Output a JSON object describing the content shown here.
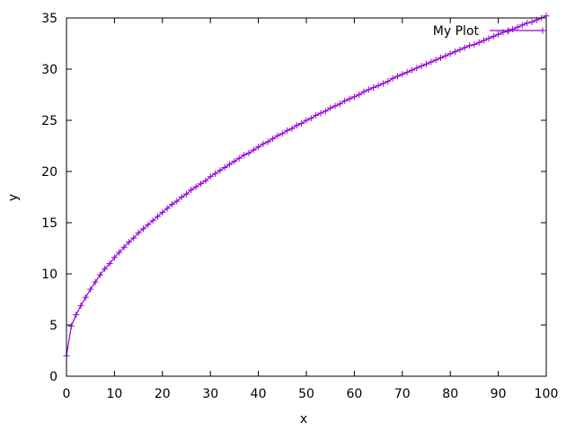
{
  "chart_data": {
    "type": "line",
    "title": "",
    "xlabel": "x",
    "ylabel": "y",
    "xlim": [
      0,
      100
    ],
    "ylim": [
      0,
      35
    ],
    "x_ticks": [
      "0",
      "10",
      "20",
      "30",
      "40",
      "50",
      "60",
      "70",
      "80",
      "90",
      "100"
    ],
    "y_ticks": [
      "0",
      "5",
      "10",
      "15",
      "20",
      "25",
      "30",
      "35"
    ],
    "legend_position": "top-right",
    "grid": false,
    "series": [
      {
        "name": "My Plot",
        "color": "#9400d3",
        "marker": "plus",
        "x": [
          0,
          1,
          2,
          3,
          4,
          5,
          6,
          7,
          8,
          9,
          10,
          11,
          12,
          13,
          14,
          15,
          16,
          17,
          18,
          19,
          20,
          21,
          22,
          23,
          24,
          25,
          26,
          27,
          28,
          29,
          30,
          31,
          32,
          33,
          34,
          35,
          36,
          37,
          38,
          39,
          40,
          41,
          42,
          43,
          44,
          45,
          46,
          47,
          48,
          49,
          50,
          51,
          52,
          53,
          54,
          55,
          56,
          57,
          58,
          59,
          60,
          61,
          62,
          63,
          64,
          65,
          66,
          67,
          68,
          69,
          70,
          71,
          72,
          73,
          74,
          75,
          76,
          77,
          78,
          79,
          80,
          81,
          82,
          83,
          84,
          85,
          86,
          87,
          88,
          89,
          90,
          91,
          92,
          93,
          94,
          95,
          96,
          97,
          98,
          99,
          100
        ],
        "y": [
          2.0,
          4.9,
          6.0,
          6.9,
          7.7,
          8.5,
          9.2,
          9.9,
          10.5,
          11.0,
          11.6,
          12.1,
          12.6,
          13.1,
          13.5,
          14.0,
          14.4,
          14.8,
          15.2,
          15.6,
          16.0,
          16.4,
          16.8,
          17.1,
          17.5,
          17.8,
          18.2,
          18.5,
          18.8,
          19.1,
          19.5,
          19.8,
          20.1,
          20.4,
          20.7,
          21.0,
          21.3,
          21.6,
          21.8,
          22.1,
          22.4,
          22.7,
          22.9,
          23.2,
          23.5,
          23.7,
          24.0,
          24.2,
          24.5,
          24.7,
          25.0,
          25.2,
          25.5,
          25.7,
          25.9,
          26.2,
          26.4,
          26.6,
          26.9,
          27.1,
          27.3,
          27.5,
          27.8,
          28.0,
          28.2,
          28.4,
          28.6,
          28.8,
          29.1,
          29.3,
          29.5,
          29.7,
          29.9,
          30.1,
          30.3,
          30.5,
          30.7,
          30.9,
          31.1,
          31.3,
          31.5,
          31.7,
          31.9,
          32.1,
          32.3,
          32.4,
          32.6,
          32.8,
          33.0,
          33.2,
          33.4,
          33.6,
          33.7,
          33.9,
          34.1,
          34.3,
          34.5,
          34.6,
          34.8,
          35.0,
          35.2
        ]
      }
    ]
  }
}
